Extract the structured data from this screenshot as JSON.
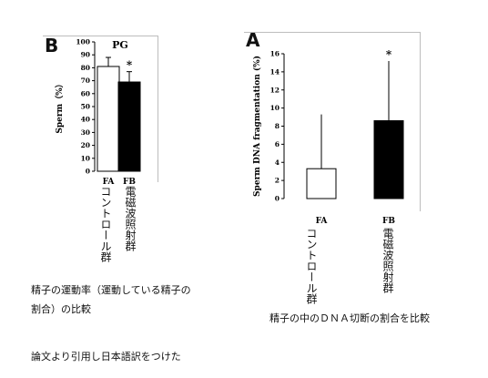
{
  "charts": [
    {
      "panel": "B",
      "header": "PG",
      "chart_data": {
        "type": "bar",
        "title": "PG",
        "ylabel": "Sperm（%）",
        "xlabel": "",
        "ylim": [
          0,
          100
        ],
        "yticks": [
          "0",
          "10",
          "20",
          "30",
          "40",
          "50",
          "60",
          "70",
          "80",
          "90",
          "100"
        ],
        "categories": [
          "FA",
          "FB"
        ],
        "values": [
          81,
          69
        ],
        "errors": [
          7,
          8
        ],
        "bar_colors": [
          "#ffffff",
          "#000000"
        ],
        "significance": [
          "",
          "*"
        ],
        "category_notes": [
          "コントロール群",
          "電磁波照射群"
        ]
      }
    },
    {
      "panel": "A",
      "chart_data": {
        "type": "bar",
        "title": "",
        "ylabel": "Sperm DNA fragmentation (%)",
        "xlabel": "",
        "ylim": [
          0,
          16
        ],
        "yticks": [
          "0",
          "2",
          "4",
          "6",
          "8",
          "10",
          "12",
          "14",
          "16"
        ],
        "categories": [
          "FA",
          "FB"
        ],
        "values": [
          3.3,
          8.6
        ],
        "errors": [
          6.0,
          6.6
        ],
        "bar_colors": [
          "#ffffff",
          "#000000"
        ],
        "significance": [
          "",
          "*"
        ],
        "category_notes": [
          "コントロール群",
          "電磁波照射群"
        ]
      }
    }
  ],
  "captions": {
    "left_line1": "精子の運動率（運動している精子の",
    "left_line2": "割合）の比較",
    "right": "精子の中のＤＮＡ切断の割合を比較",
    "footer": "論文より引用し日本語訳をつけた"
  }
}
